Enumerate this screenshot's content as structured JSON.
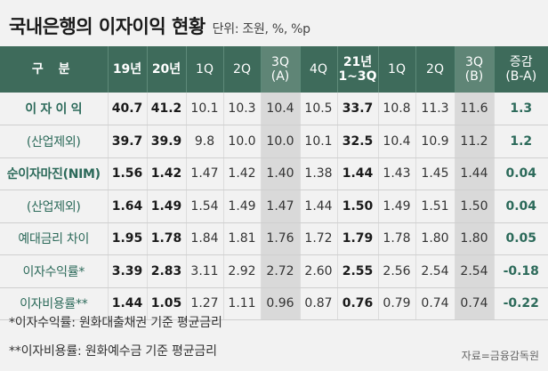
{
  "title": "국내은행의 이자이익 현황",
  "unit": "단위: 조원, %, %p",
  "headers": [
    {
      "text": "구 분"
    },
    {
      "text": "19년"
    },
    {
      "text": "20년"
    },
    {
      "text": "1Q"
    },
    {
      "text": "2Q"
    },
    {
      "line1": "3Q",
      "line2": "(A)"
    },
    {
      "text": "4Q"
    },
    {
      "line1": "21년",
      "line2": "1~3Q"
    },
    {
      "text": "1Q"
    },
    {
      "text": "2Q"
    },
    {
      "line1": "3Q",
      "line2": "(B)"
    },
    {
      "line1": "증감",
      "line2": "(B-A)"
    }
  ],
  "rows": [
    {
      "label": "이 자 이 익",
      "values": [
        "40.7",
        "41.2",
        "10.1",
        "10.3",
        "10.4",
        "10.5",
        "33.7",
        "10.8",
        "11.3",
        "11.6",
        "1.3"
      ]
    },
    {
      "label": "(산업제외)",
      "values": [
        "39.7",
        "39.9",
        "9.8",
        "10.0",
        "10.0",
        "10.1",
        "32.5",
        "10.4",
        "10.9",
        "11.2",
        "1.2"
      ]
    },
    {
      "label": "순이자마진(NIM)",
      "values": [
        "1.56",
        "1.42",
        "1.47",
        "1.42",
        "1.40",
        "1.38",
        "1.44",
        "1.43",
        "1.45",
        "1.44",
        "0.04"
      ]
    },
    {
      "label": "(산업제외)",
      "values": [
        "1.64",
        "1.49",
        "1.54",
        "1.49",
        "1.47",
        "1.44",
        "1.50",
        "1.49",
        "1.51",
        "1.50",
        "0.04"
      ]
    },
    {
      "label": "예대금리 차이",
      "values": [
        "1.95",
        "1.78",
        "1.84",
        "1.81",
        "1.76",
        "1.72",
        "1.79",
        "1.78",
        "1.80",
        "1.80",
        "0.05"
      ]
    },
    {
      "label": "이자수익률*",
      "values": [
        "3.39",
        "2.83",
        "3.11",
        "2.92",
        "2.72",
        "2.60",
        "2.55",
        "2.56",
        "2.54",
        "2.54",
        "-0.18"
      ]
    },
    {
      "label": "이자비용률**",
      "values": [
        "1.44",
        "1.05",
        "1.27",
        "1.11",
        "0.96",
        "0.87",
        "0.76",
        "0.79",
        "0.74",
        "0.74",
        "-0.22"
      ]
    }
  ],
  "notes": [
    "*이자수익률: 원화대출채권 기준 평균금리",
    "**이자비용률: 원화예수금 기준 평균금리"
  ],
  "source": "자료=금융감독원",
  "colors": {
    "header_bg": "#3e6b5b",
    "header_highlight": "#5f8576",
    "label_text": "#2c6a5a",
    "highlight_col_bg": "#d9d9d9"
  }
}
